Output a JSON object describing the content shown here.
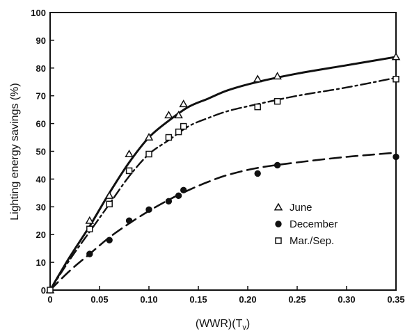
{
  "chart_data": {
    "type": "line",
    "title": "",
    "xlabel": "(WWR)(T",
    "xlabel_sub": "v",
    "xlabel_close": ")",
    "ylabel": "Lighting energy savings (%)",
    "xlim": [
      0,
      0.35
    ],
    "ylim": [
      0,
      100
    ],
    "xticks": [
      "0",
      "0.05",
      "0.10",
      "0.15",
      "0.20",
      "0.25",
      "0.30",
      "0.35"
    ],
    "xtick_values": [
      0,
      0.05,
      0.1,
      0.15,
      0.2,
      0.25,
      0.3,
      0.35
    ],
    "yticks": [
      "0",
      "10",
      "20",
      "30",
      "40",
      "50",
      "60",
      "70",
      "80",
      "90",
      "100"
    ],
    "ytick_values": [
      0,
      10,
      20,
      30,
      40,
      50,
      60,
      70,
      80,
      90,
      100
    ],
    "grid": false,
    "legend_position": "lower-right",
    "series": [
      {
        "name": "June",
        "marker": "triangle-open",
        "line_style": "solid",
        "color": "#111111",
        "points": [
          [
            0,
            0
          ],
          [
            0.04,
            25
          ],
          [
            0.06,
            34
          ],
          [
            0.08,
            49
          ],
          [
            0.1,
            55
          ],
          [
            0.12,
            63
          ],
          [
            0.13,
            63
          ],
          [
            0.135,
            67
          ],
          [
            0.21,
            76
          ],
          [
            0.23,
            77
          ],
          [
            0.35,
            84
          ]
        ],
        "curve": [
          [
            0,
            0
          ],
          [
            0.02,
            12
          ],
          [
            0.04,
            23
          ],
          [
            0.06,
            35
          ],
          [
            0.08,
            46
          ],
          [
            0.1,
            55
          ],
          [
            0.12,
            61
          ],
          [
            0.14,
            66
          ],
          [
            0.16,
            69
          ],
          [
            0.18,
            72
          ],
          [
            0.21,
            75
          ],
          [
            0.25,
            78
          ],
          [
            0.3,
            81
          ],
          [
            0.35,
            84
          ]
        ]
      },
      {
        "name": "December",
        "marker": "circle-filled",
        "line_style": "dashed",
        "color": "#111111",
        "points": [
          [
            0,
            0
          ],
          [
            0.04,
            13
          ],
          [
            0.06,
            18
          ],
          [
            0.08,
            25
          ],
          [
            0.1,
            29
          ],
          [
            0.12,
            32
          ],
          [
            0.13,
            34
          ],
          [
            0.135,
            36
          ],
          [
            0.21,
            42
          ],
          [
            0.23,
            45
          ],
          [
            0.35,
            48
          ]
        ],
        "curve": [
          [
            0,
            0
          ],
          [
            0.02,
            7
          ],
          [
            0.04,
            13
          ],
          [
            0.06,
            19
          ],
          [
            0.08,
            24
          ],
          [
            0.1,
            28.5
          ],
          [
            0.12,
            32.5
          ],
          [
            0.14,
            36
          ],
          [
            0.16,
            39
          ],
          [
            0.18,
            41.5
          ],
          [
            0.21,
            44
          ],
          [
            0.25,
            46
          ],
          [
            0.3,
            48
          ],
          [
            0.35,
            49.5
          ]
        ]
      },
      {
        "name": "Mar./Sep.",
        "marker": "square-open",
        "line_style": "dash-dot",
        "color": "#111111",
        "points": [
          [
            0,
            0
          ],
          [
            0.04,
            22
          ],
          [
            0.06,
            31
          ],
          [
            0.08,
            43
          ],
          [
            0.1,
            49
          ],
          [
            0.12,
            55
          ],
          [
            0.13,
            57
          ],
          [
            0.135,
            59
          ],
          [
            0.21,
            66
          ],
          [
            0.23,
            68
          ],
          [
            0.35,
            76
          ]
        ],
        "curve": [
          [
            0,
            0
          ],
          [
            0.02,
            11
          ],
          [
            0.04,
            21
          ],
          [
            0.06,
            31
          ],
          [
            0.08,
            41
          ],
          [
            0.1,
            49
          ],
          [
            0.12,
            54
          ],
          [
            0.14,
            59
          ],
          [
            0.16,
            62
          ],
          [
            0.18,
            64.5
          ],
          [
            0.21,
            67
          ],
          [
            0.25,
            70
          ],
          [
            0.3,
            73
          ],
          [
            0.35,
            76.5
          ]
        ]
      }
    ]
  }
}
